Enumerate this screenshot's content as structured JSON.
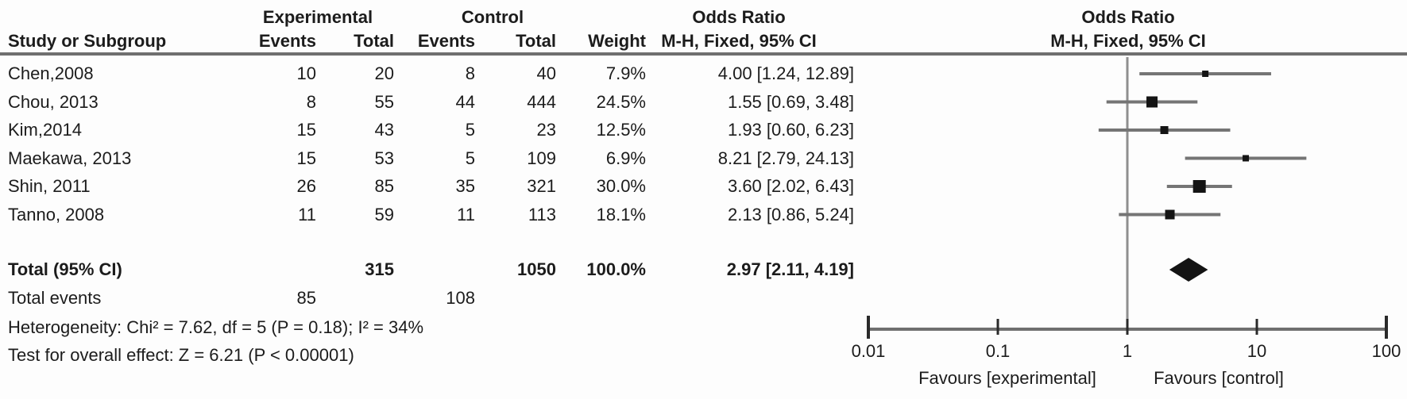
{
  "figure": {
    "kind": "forest-plot",
    "colors": {
      "text": "#1c1c1c",
      "rule": "#6f6f6f",
      "axis": "#6f6f6f",
      "ci_line": "#757575",
      "or_line": "#8f8f8f",
      "marker": "#141414",
      "background": "#fdfdfd"
    }
  },
  "table": {
    "group1_header": "Experimental",
    "group2_header": "Control",
    "weight_header": "Weight",
    "or_header": "Odds Ratio",
    "or_subheader": "M-H, Fixed, 95% CI",
    "col_study": "Study or Subgroup",
    "col_events": "Events",
    "col_total": "Total",
    "rows": [
      {
        "study": "Chen,2008",
        "e_events": "10",
        "e_total": "20",
        "c_events": "8",
        "c_total": "40",
        "weight": "7.9%",
        "or_text": "4.00 [1.24, 12.89]"
      },
      {
        "study": "Chou, 2013",
        "e_events": "8",
        "e_total": "55",
        "c_events": "44",
        "c_total": "444",
        "weight": "24.5%",
        "or_text": "1.55 [0.69, 3.48]"
      },
      {
        "study": "Kim,2014",
        "e_events": "15",
        "e_total": "43",
        "c_events": "5",
        "c_total": "23",
        "weight": "12.5%",
        "or_text": "1.93 [0.60, 6.23]"
      },
      {
        "study": "Maekawa, 2013",
        "e_events": "15",
        "e_total": "53",
        "c_events": "5",
        "c_total": "109",
        "weight": "6.9%",
        "or_text": "8.21 [2.79, 24.13]"
      },
      {
        "study": "Shin, 2011",
        "e_events": "26",
        "e_total": "85",
        "c_events": "35",
        "c_total": "321",
        "weight": "30.0%",
        "or_text": "3.60 [2.02, 6.43]"
      },
      {
        "study": "Tanno, 2008",
        "e_events": "11",
        "e_total": "59",
        "c_events": "11",
        "c_total": "113",
        "weight": "18.1%",
        "or_text": "2.13 [0.86, 5.24]"
      }
    ],
    "total_row": {
      "label": "Total (95% CI)",
      "e_total": "315",
      "c_total": "1050",
      "weight": "100.0%",
      "or_text": "2.97 [2.11, 4.19]"
    },
    "total_events_row": {
      "label": "Total events",
      "e_events": "85",
      "c_events": "108"
    },
    "footer1": "Heterogeneity: Chi² = 7.62, df = 5 (P = 0.18); I² = 34%",
    "footer2": "Test for overall effect: Z = 6.21 (P < 0.00001)"
  },
  "chart_data": {
    "type": "scatter",
    "subtype": "forest",
    "title": "Odds Ratio",
    "method_label": "M-H, Fixed, 95% CI",
    "x_scale": "log10",
    "x_ticks": [
      0.01,
      0.1,
      1,
      10,
      100
    ],
    "x_tick_labels": [
      "0.01",
      "0.1",
      "1",
      "10",
      "100"
    ],
    "xlim": [
      0.01,
      100
    ],
    "reference_line": 1,
    "xlabel_left": "Favours [experimental]",
    "xlabel_right": "Favours [control]",
    "studies": [
      {
        "name": "Chen,2008",
        "or": 4.0,
        "ci_low": 1.24,
        "ci_high": 12.89,
        "weight_pct": 7.9
      },
      {
        "name": "Chou, 2013",
        "or": 1.55,
        "ci_low": 0.69,
        "ci_high": 3.48,
        "weight_pct": 24.5
      },
      {
        "name": "Kim,2014",
        "or": 1.93,
        "ci_low": 0.6,
        "ci_high": 6.23,
        "weight_pct": 12.5
      },
      {
        "name": "Maekawa, 2013",
        "or": 8.21,
        "ci_low": 2.79,
        "ci_high": 24.13,
        "weight_pct": 6.9
      },
      {
        "name": "Shin, 2011",
        "or": 3.6,
        "ci_low": 2.02,
        "ci_high": 6.43,
        "weight_pct": 30.0
      },
      {
        "name": "Tanno, 2008",
        "or": 2.13,
        "ci_low": 0.86,
        "ci_high": 5.24,
        "weight_pct": 18.1
      }
    ],
    "total": {
      "or": 2.97,
      "ci_low": 2.11,
      "ci_high": 4.19,
      "weight_pct": 100.0
    },
    "heterogeneity": {
      "chi2": 7.62,
      "df": 5,
      "p": 0.18,
      "i2_pct": 34
    },
    "overall_effect": {
      "z": 6.21,
      "p_text": "P < 0.00001"
    }
  }
}
